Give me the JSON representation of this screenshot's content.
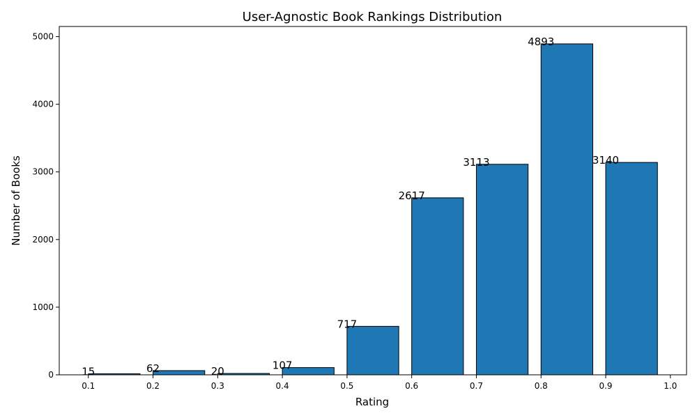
{
  "chart_data": {
    "type": "bar",
    "title": "User-Agnostic Book Rankings Distribution",
    "xlabel": "Rating",
    "ylabel": "Number of Books",
    "bin_edges": [
      0.1,
      0.2,
      0.3,
      0.4,
      0.5,
      0.6,
      0.7,
      0.8,
      0.9,
      1.0
    ],
    "values": [
      15,
      62,
      20,
      107,
      717,
      2617,
      3113,
      4893,
      3140
    ],
    "data_labels": [
      "15",
      "62",
      "20",
      "107",
      "717",
      "2617",
      "3113",
      "4893",
      "3140"
    ],
    "bar_width": 0.08,
    "xlim": [
      0.055,
      1.025
    ],
    "ylim": [
      0,
      5150
    ],
    "x_ticks": [
      "0.1",
      "0.2",
      "0.3",
      "0.4",
      "0.5",
      "0.6",
      "0.7",
      "0.8",
      "0.9",
      "1.0"
    ],
    "y_ticks": [
      "0",
      "1000",
      "2000",
      "3000",
      "4000",
      "5000"
    ],
    "bar_color": "#1f77b4",
    "edge_color": "#000000",
    "grid": false
  }
}
